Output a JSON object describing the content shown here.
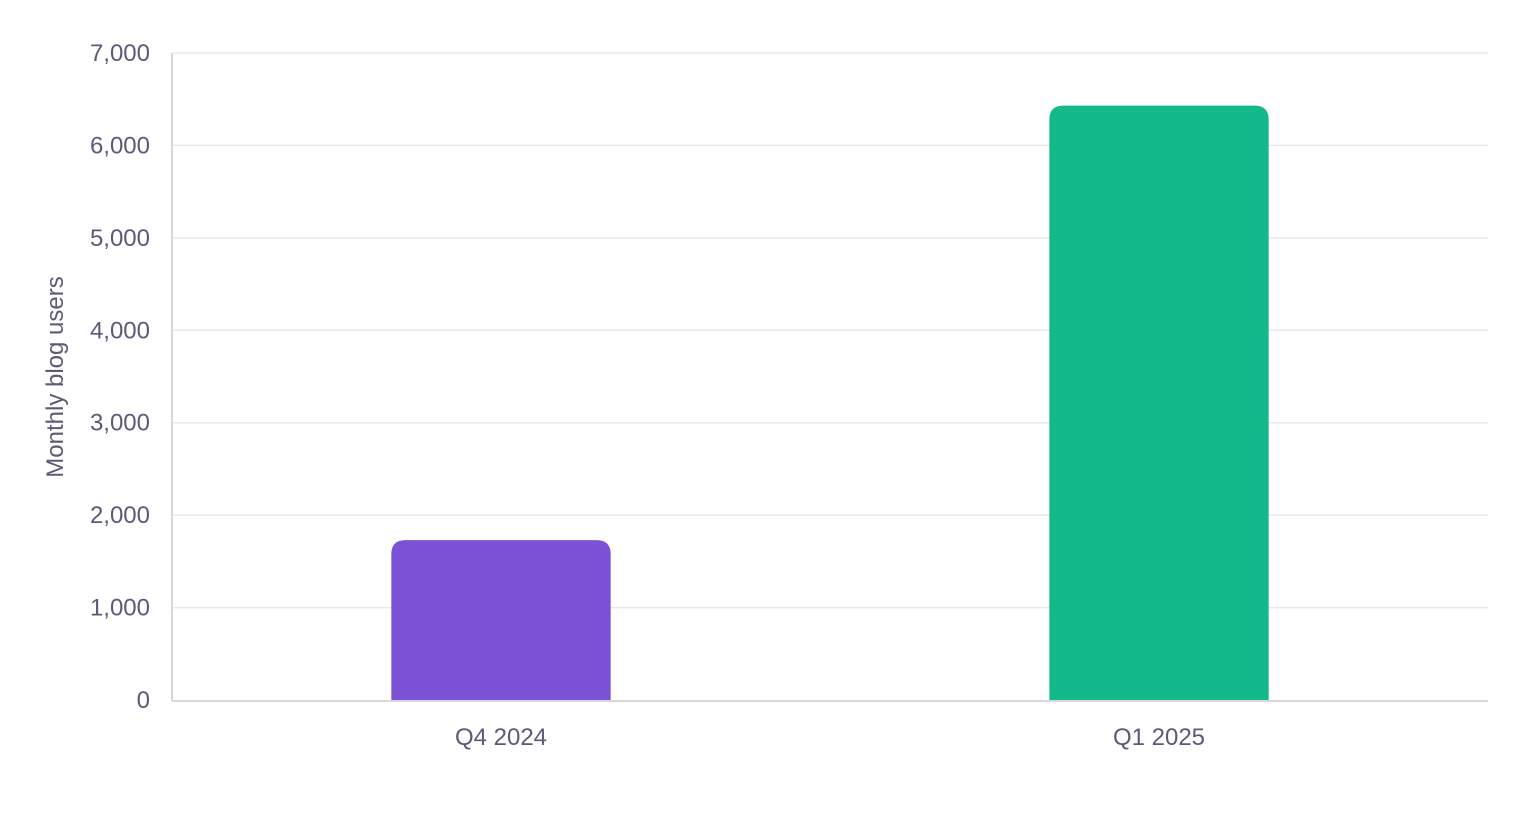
{
  "chart_data": {
    "type": "bar",
    "title": "",
    "xlabel": "",
    "ylabel": "Monthly blog users",
    "categories": [
      "Q4 2024",
      "Q1 2025"
    ],
    "values": [
      1730,
      6430
    ],
    "bar_colors": [
      "#7b51d6",
      "#13b98a"
    ],
    "ylim": [
      0,
      7000
    ],
    "y_ticks": [
      0,
      1000,
      2000,
      3000,
      4000,
      5000,
      6000,
      7000
    ],
    "y_tick_labels": [
      "0",
      "1,000",
      "2,000",
      "3,000",
      "4,000",
      "5,000",
      "6,000",
      "7,000"
    ],
    "grid": true,
    "legend": "none"
  }
}
